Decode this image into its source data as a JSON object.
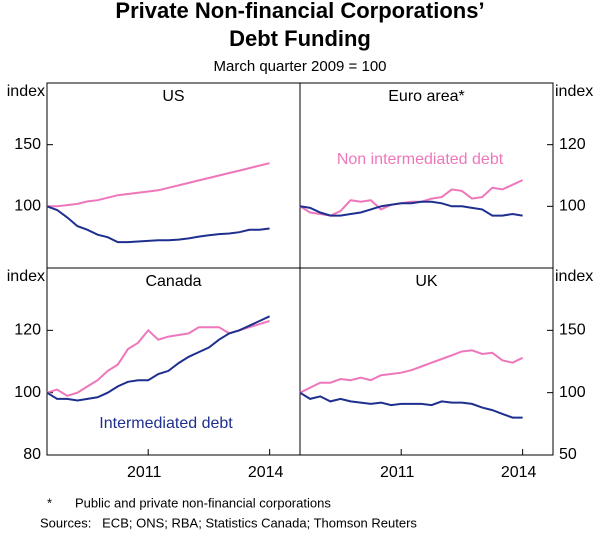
{
  "title": [
    "Private Non-financial Corporations’",
    "Debt Funding"
  ],
  "subtitle": "March quarter 2009 = 100",
  "footnote": {
    "marker": "*",
    "text": "Public and private non-financial corporations"
  },
  "sources": "Sources:   ECB; ONS; RBA; Statistics Canada; Thomson Reuters",
  "chart_data": [
    {
      "type": "line",
      "title": "US",
      "ylabel": "index",
      "axis_side": "left",
      "x": [
        2009,
        2009.25,
        2009.5,
        2009.75,
        2010,
        2010.25,
        2010.5,
        2010.75,
        2011,
        2011.25,
        2011.5,
        2011.75,
        2012,
        2012.25,
        2012.5,
        2012.75,
        2013,
        2013.25,
        2013.5,
        2013.75,
        2014,
        2014.25,
        2014.5
      ],
      "xlim": [
        2009,
        2015.25
      ],
      "ylim": [
        50,
        200
      ],
      "yticks": [
        100,
        150
      ],
      "series": [
        {
          "color": "#ee77bb",
          "values": [
            100,
            100,
            101,
            102,
            104,
            105,
            107,
            109,
            110,
            111,
            112,
            113,
            115,
            117,
            119,
            121,
            123,
            125,
            127,
            129,
            131,
            133,
            135
          ]
        },
        {
          "color": "#1f2f8f",
          "values": [
            100,
            97,
            91,
            84,
            81,
            77,
            75,
            71,
            71,
            71.5,
            72,
            72.5,
            72.5,
            73,
            74,
            75.5,
            76.5,
            77.5,
            78,
            79,
            81,
            81,
            82
          ]
        }
      ]
    },
    {
      "type": "line",
      "title": "Euro area*",
      "ylabel": "index",
      "axis_side": "right",
      "x": [
        2009,
        2009.25,
        2009.5,
        2009.75,
        2010,
        2010.25,
        2010.5,
        2010.75,
        2011,
        2011.25,
        2011.5,
        2011.75,
        2012,
        2012.25,
        2012.5,
        2012.75,
        2013,
        2013.25,
        2013.5,
        2013.75,
        2014,
        2014.25,
        2014.5
      ],
      "xlim": [
        2009,
        2015.25
      ],
      "ylim": [
        80,
        140
      ],
      "yticks": [
        100,
        120
      ],
      "series": [
        {
          "name": "Non intermediated debt",
          "color": "#ee77bb",
          "values": [
            100,
            98,
            97.5,
            97,
            98.5,
            102,
            101.5,
            102,
            99,
            100.5,
            101,
            101.5,
            101.5,
            102.5,
            103,
            105.5,
            105,
            102.5,
            103,
            106,
            105.5,
            107,
            108.5
          ]
        },
        {
          "color": "#1f2f8f",
          "values": [
            100,
            99.5,
            98,
            97,
            97,
            97.5,
            98,
            99,
            100,
            100.5,
            101,
            101,
            101.5,
            101.5,
            101,
            100,
            100,
            99.5,
            99,
            97,
            97,
            97.5,
            97
          ]
        }
      ]
    },
    {
      "type": "line",
      "title": "Canada",
      "ylabel": "index",
      "axis_side": "left",
      "x": [
        2009,
        2009.25,
        2009.5,
        2009.75,
        2010,
        2010.25,
        2010.5,
        2010.75,
        2011,
        2011.25,
        2011.5,
        2011.75,
        2012,
        2012.25,
        2012.5,
        2012.75,
        2013,
        2013.25,
        2013.5,
        2013.75,
        2014,
        2014.25,
        2014.5
      ],
      "xlim": [
        2009,
        2015.25
      ],
      "ylim": [
        80,
        140
      ],
      "yticks": [
        80,
        100,
        120
      ],
      "xticks": [
        {
          "value": 2011.5,
          "label": "2011"
        },
        {
          "value": 2014.5,
          "label": "2014"
        }
      ],
      "series": [
        {
          "color": "#ee77bb",
          "values": [
            100,
            101,
            99,
            100,
            102,
            104,
            107,
            109,
            114,
            116,
            120,
            117,
            118,
            118.5,
            119,
            121,
            121,
            121,
            119,
            120,
            121,
            122,
            123
          ]
        },
        {
          "name": "Intermediated debt",
          "color": "#1f2f8f",
          "values": [
            100,
            98,
            98,
            97.5,
            98,
            98.5,
            100,
            102,
            103.5,
            104,
            104,
            106,
            107,
            109.5,
            111.5,
            113,
            114.5,
            117,
            119,
            120,
            121.5,
            123,
            124.5
          ]
        }
      ]
    },
    {
      "type": "line",
      "title": "UK",
      "ylabel": "index",
      "axis_side": "right",
      "x": [
        2009,
        2009.25,
        2009.5,
        2009.75,
        2010,
        2010.25,
        2010.5,
        2010.75,
        2011,
        2011.25,
        2011.5,
        2011.75,
        2012,
        2012.25,
        2012.5,
        2012.75,
        2013,
        2013.25,
        2013.5,
        2013.75,
        2014,
        2014.25,
        2014.5
      ],
      "xlim": [
        2009,
        2015.25
      ],
      "ylim": [
        50,
        200
      ],
      "yticks": [
        50,
        100,
        150
      ],
      "xticks": [
        {
          "value": 2011.5,
          "label": "2011"
        },
        {
          "value": 2014.5,
          "label": "2014"
        }
      ],
      "series": [
        {
          "color": "#ee77bb",
          "values": [
            100,
            104,
            108,
            108,
            111,
            110,
            112,
            110,
            114,
            115,
            116,
            118,
            121,
            124,
            127,
            130,
            133,
            134,
            131,
            132,
            126,
            124,
            128
          ]
        },
        {
          "color": "#1f2f8f",
          "values": [
            100,
            95,
            97,
            93,
            95,
            93,
            92,
            91,
            92,
            90,
            91,
            91,
            91,
            90,
            93,
            92,
            92,
            91,
            88,
            86,
            83,
            80,
            80
          ]
        }
      ]
    }
  ]
}
